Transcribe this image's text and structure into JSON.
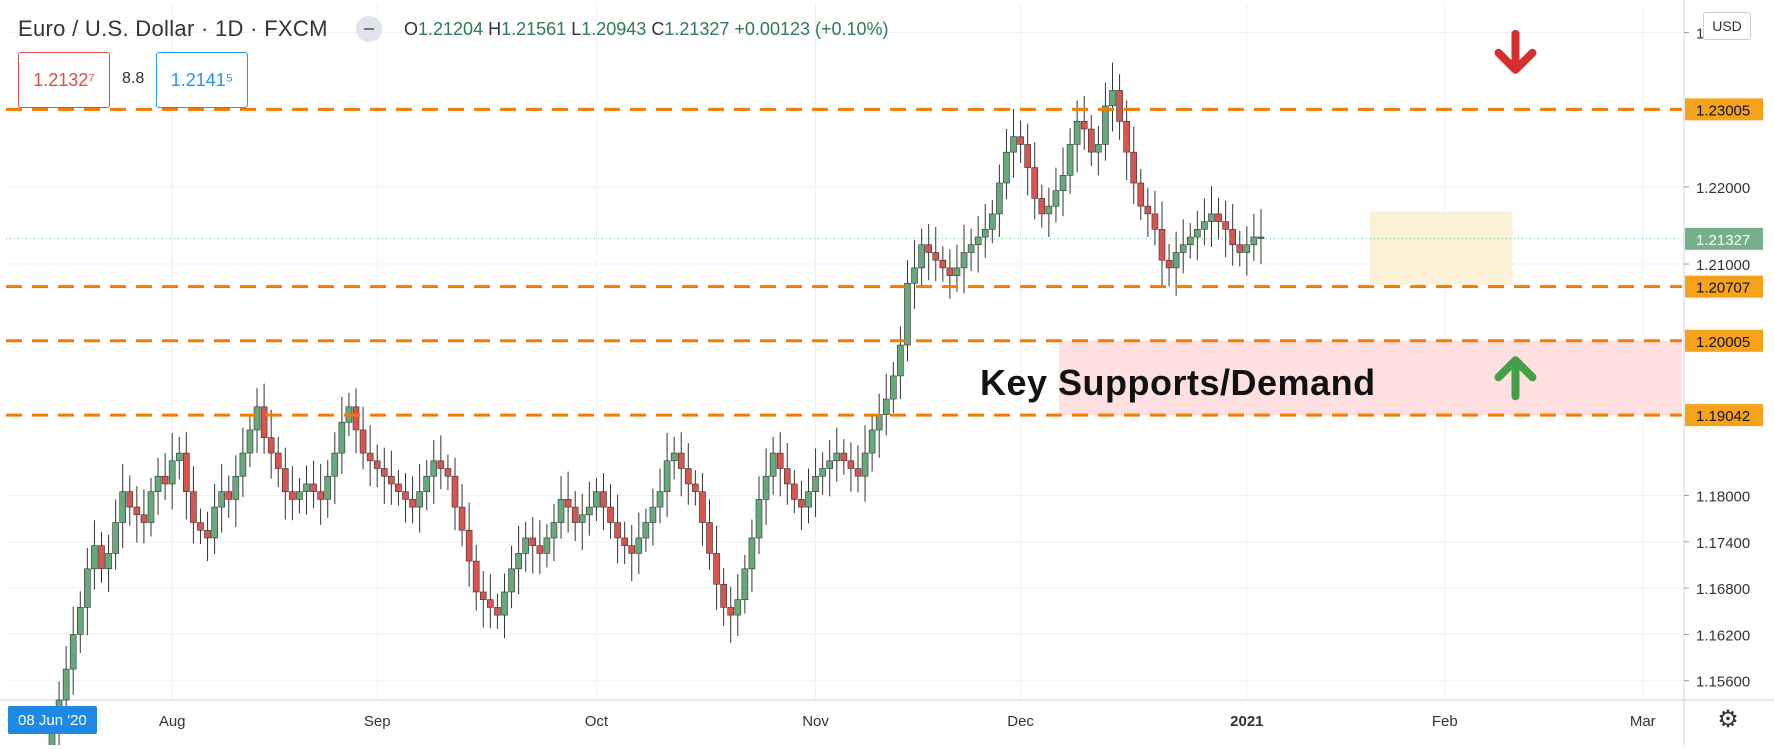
{
  "header": {
    "symbol_title": "Euro / U.S. Dollar · 1D · FXCM",
    "ohlc": {
      "open_label": "O",
      "open": "1.21204",
      "high_label": "H",
      "high": "1.21561",
      "low_label": "L",
      "low": "1.20943",
      "close_label": "C",
      "close": "1.21327",
      "change": "+0.00123 (+0.10%)"
    },
    "sell_price": "1.2132⁷",
    "spread": "8.8",
    "buy_price": "1.2141⁵",
    "currency": "USD"
  },
  "current_date_badge": "08 Jun '20",
  "chart_data": {
    "type": "candlestick",
    "y_axis": {
      "min": 1.1535,
      "max": 1.2437,
      "ticks": [
        "1.15600",
        "1.16200",
        "1.16800",
        "1.17400",
        "1.18000",
        "1.21000",
        "1.22000",
        "1.24000"
      ]
    },
    "x_axis": {
      "labels": [
        "Aug",
        "Sep",
        "Oct",
        "Nov",
        "Dec",
        "2021",
        "Feb",
        "Mar"
      ],
      "bold_labels": [
        "2021"
      ]
    },
    "current_price": "1.21327",
    "levels": [
      {
        "value": 1.23005,
        "label": "1.23005"
      },
      {
        "value": 1.20707,
        "label": "1.20707"
      },
      {
        "value": 1.20005,
        "label": "1.20005"
      },
      {
        "value": 1.19042,
        "label": "1.19042"
      }
    ],
    "demand_zone": {
      "from": 1.19042,
      "to": 1.20005,
      "start_bar": 143
    },
    "consolidation_box": {
      "low": 1.2073,
      "high": 1.2168,
      "start_bar": 187,
      "end_bar": 206
    },
    "annotation": "Key Supports/Demand",
    "arrows": [
      {
        "direction": "down",
        "color": "#d32f2f",
        "bar": 207,
        "price": 1.2375
      },
      {
        "direction": "up",
        "color": "#43a047",
        "bar": 207,
        "price": 1.1952
      }
    ],
    "colors": {
      "up": "#26a69a",
      "up_body": "#66a97a",
      "down": "#d9534f",
      "level": "#f57c00",
      "level_label_bg": "#f7a21b",
      "price_label_bg": "#74b08a"
    },
    "closes": [
      1.1505,
      1.1535,
      1.1575,
      1.162,
      1.1655,
      1.1705,
      1.1735,
      1.1705,
      1.1725,
      1.1765,
      1.1805,
      1.1785,
      1.1775,
      1.1765,
      1.1805,
      1.1825,
      1.1815,
      1.1845,
      1.1855,
      1.1805,
      1.1765,
      1.1755,
      1.1745,
      1.1785,
      1.1805,
      1.1795,
      1.1825,
      1.1855,
      1.1885,
      1.1915,
      1.1875,
      1.1855,
      1.1835,
      1.1805,
      1.1795,
      1.1805,
      1.1815,
      1.1805,
      1.1795,
      1.1825,
      1.1855,
      1.1895,
      1.1915,
      1.1885,
      1.1855,
      1.1845,
      1.1835,
      1.1825,
      1.1815,
      1.1805,
      1.1795,
      1.1785,
      1.1805,
      1.1825,
      1.1845,
      1.1835,
      1.1825,
      1.1785,
      1.1755,
      1.1715,
      1.1675,
      1.1665,
      1.1655,
      1.1645,
      1.1675,
      1.1705,
      1.1725,
      1.1745,
      1.1735,
      1.1725,
      1.1745,
      1.1765,
      1.1795,
      1.1785,
      1.1765,
      1.1775,
      1.1785,
      1.1805,
      1.1785,
      1.1765,
      1.1745,
      1.1735,
      1.1725,
      1.1745,
      1.1765,
      1.1785,
      1.1805,
      1.1845,
      1.1855,
      1.1835,
      1.1815,
      1.1805,
      1.1765,
      1.1725,
      1.1685,
      1.1655,
      1.1645,
      1.1665,
      1.1705,
      1.1745,
      1.1795,
      1.1825,
      1.1855,
      1.1835,
      1.1815,
      1.1795,
      1.1785,
      1.1805,
      1.1825,
      1.1835,
      1.1845,
      1.1855,
      1.1845,
      1.1835,
      1.1825,
      1.1855,
      1.1885,
      1.1905,
      1.1925,
      1.1955,
      1.1995,
      1.2075,
      1.2095,
      1.2125,
      1.2115,
      1.2105,
      1.2095,
      1.2085,
      1.2095,
      1.2115,
      1.2125,
      1.2135,
      1.2145,
      1.2165,
      1.2205,
      1.2245,
      1.2265,
      1.2255,
      1.2225,
      1.2185,
      1.2165,
      1.2175,
      1.2195,
      1.2215,
      1.2255,
      1.2285,
      1.2275,
      1.2245,
      1.2255,
      1.2305,
      1.2325,
      1.2285,
      1.2245,
      1.2205,
      1.2175,
      1.2165,
      1.2145,
      1.2105,
      1.2095,
      1.2115,
      1.2125,
      1.2135,
      1.2145,
      1.2155,
      1.2165,
      1.2155,
      1.2145,
      1.2125,
      1.2115,
      1.2125,
      1.2135,
      1.2133
    ],
    "x_tick_bars": [
      17,
      46,
      77,
      108,
      137,
      169,
      197,
      225
    ]
  }
}
